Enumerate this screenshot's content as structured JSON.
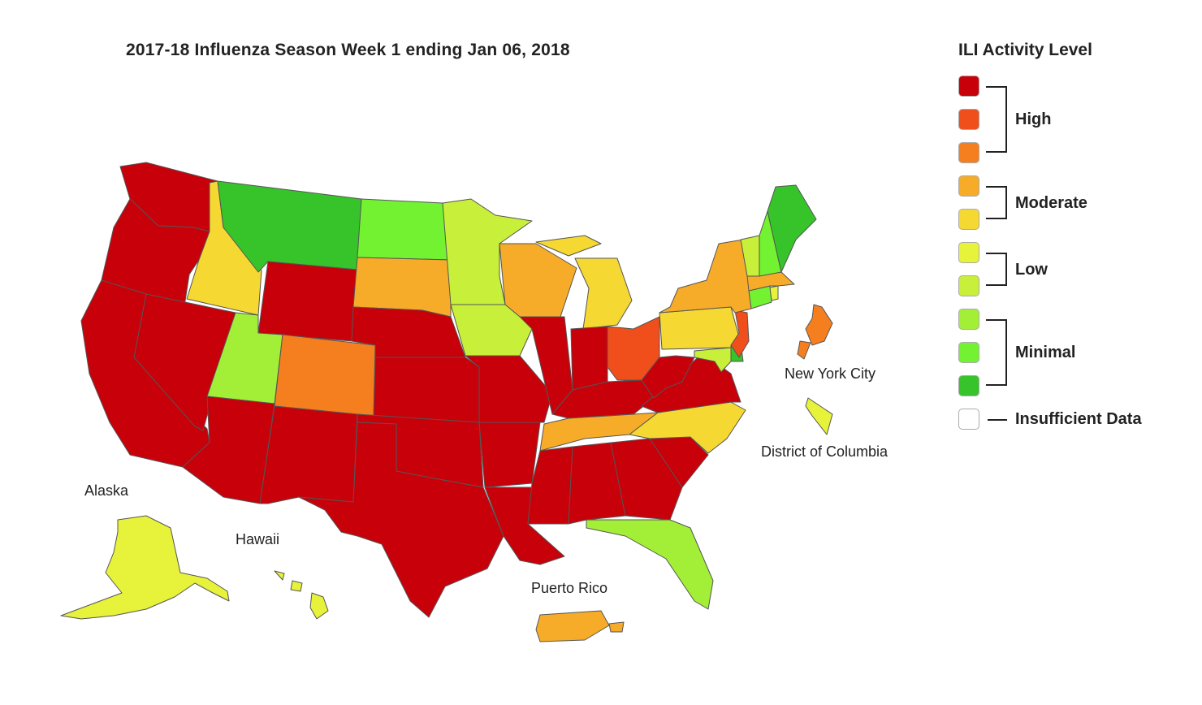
{
  "title": "2017-18 Influenza Season Week 1 ending Jan 06, 2018",
  "legend": {
    "title": "ILI Activity Level",
    "levels": [
      {
        "level": 10,
        "color": "#c8000a"
      },
      {
        "level": 9,
        "color": "#f04e1b"
      },
      {
        "level": 8,
        "color": "#f57f1f"
      },
      {
        "level": 7,
        "color": "#f6ac28"
      },
      {
        "level": 6,
        "color": "#f6d833"
      },
      {
        "level": 5,
        "color": "#e7f23a"
      },
      {
        "level": 4,
        "color": "#c8ef39"
      },
      {
        "level": 3,
        "color": "#a3ef37"
      },
      {
        "level": 2,
        "color": "#73f232"
      },
      {
        "level": 1,
        "color": "#37c42a"
      }
    ],
    "groups": {
      "high": "High",
      "moderate": "Moderate",
      "low": "Low",
      "minimal": "Minimal",
      "insufficient": "Insufficient Data"
    },
    "insufficient_color": "#ffffff"
  },
  "region_labels": {
    "alaska": "Alaska",
    "hawaii": "Hawaii",
    "puerto_rico": "Puerto Rico",
    "new_york_city": "New York City",
    "dc": "District of Columbia"
  },
  "regions": {
    "WA": 10,
    "OR": 10,
    "CA": 10,
    "NV": 10,
    "ID": 6,
    "MT": 1,
    "WY": 10,
    "UT": 3,
    "AZ": 10,
    "CO": 8,
    "NM": 10,
    "ND": 2,
    "SD": 7,
    "NE": 10,
    "KS": 10,
    "OK": 10,
    "TX": 10,
    "MN": 4,
    "IA": 4,
    "MO": 10,
    "AR": 10,
    "LA": 10,
    "WI": 7,
    "IL": 10,
    "MI": 6,
    "IN": 10,
    "OH": 9,
    "KY": 10,
    "TN": 7,
    "MS": 10,
    "AL": 10,
    "GA": 10,
    "FL": 3,
    "SC": 10,
    "NC": 6,
    "VA": 10,
    "WV": 10,
    "MD": 4,
    "DE": 1,
    "PA": 6,
    "NJ": 9,
    "NY": 7,
    "CT": 2,
    "RI": 5,
    "MA": 7,
    "VT": 4,
    "NH": 2,
    "ME": 1,
    "AK": 5,
    "HI": 5,
    "PR": 7,
    "NYC": 8,
    "DC": 5
  }
}
